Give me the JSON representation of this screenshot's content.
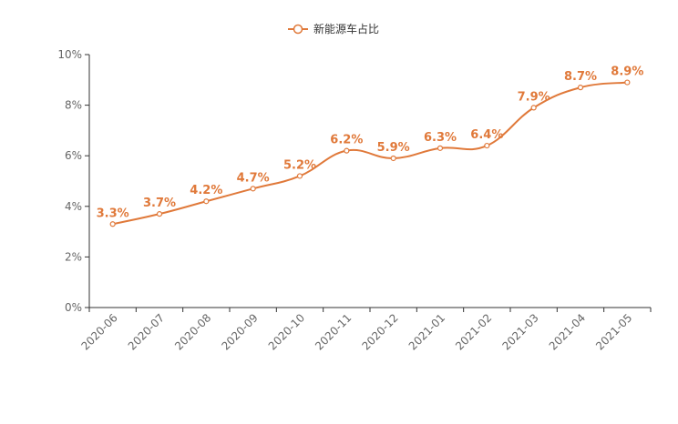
{
  "colors": {
    "series": "#e0793a",
    "axis": "#333333",
    "tick_text": "#666666"
  },
  "legend": {
    "position": "top-center",
    "icon": "line-with-hollow-circle-icon"
  },
  "chart_data": {
    "type": "line",
    "smooth": true,
    "categories": [
      "2020-06",
      "2020-07",
      "2020-08",
      "2020-09",
      "2020-10",
      "2020-11",
      "2020-12",
      "2021-01",
      "2021-02",
      "2021-03",
      "2021-04",
      "2021-05"
    ],
    "series": [
      {
        "name": "新能源车占比",
        "values": [
          3.3,
          3.7,
          4.2,
          4.7,
          5.2,
          6.2,
          5.9,
          6.3,
          6.4,
          7.9,
          8.7,
          8.9
        ],
        "labels": [
          "3.3%",
          "3.7%",
          "4.2%",
          "4.7%",
          "5.2%",
          "6.2%",
          "5.9%",
          "6.3%",
          "6.4%",
          "7.9%",
          "8.7%",
          "8.9%"
        ]
      }
    ],
    "ylim": [
      0,
      10
    ],
    "yticks": [
      "0%",
      "2%",
      "4%",
      "6%",
      "8%",
      "10%"
    ],
    "grid": false,
    "xlabel_rotation": -45
  }
}
